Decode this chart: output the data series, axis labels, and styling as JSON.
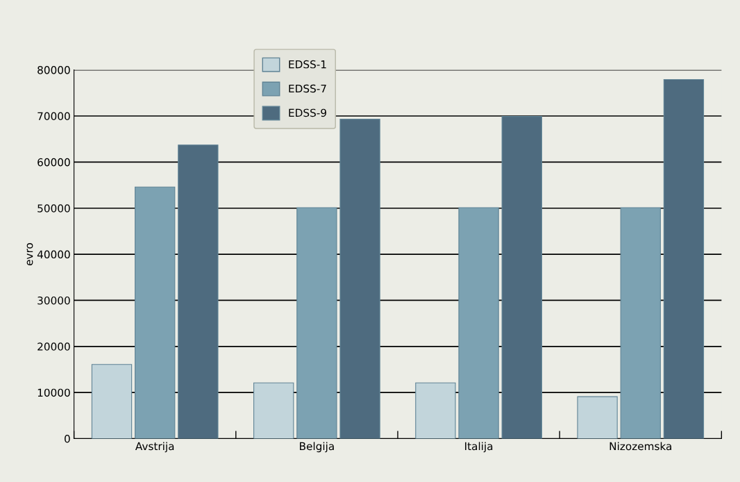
{
  "chart_data": {
    "type": "bar",
    "ylabel": "evro",
    "categories": [
      "Avstrija",
      "Belgija",
      "Italija",
      "Nizozemska"
    ],
    "series": [
      {
        "name": "EDSS-1",
        "color": "#c2d5db",
        "values": [
          16100,
          12100,
          12100,
          9100
        ]
      },
      {
        "name": "EDSS-7",
        "color": "#7ca2b2",
        "values": [
          54600,
          50100,
          50100,
          50100
        ]
      },
      {
        "name": "EDSS-9",
        "color": "#4e6b7f",
        "values": [
          63700,
          69300,
          69900,
          77900
        ]
      }
    ],
    "ylim": [
      0,
      80000
    ],
    "yticks": [
      0,
      10000,
      20000,
      30000,
      40000,
      50000,
      60000,
      70000,
      80000
    ],
    "grid": "y",
    "legend": "top"
  }
}
